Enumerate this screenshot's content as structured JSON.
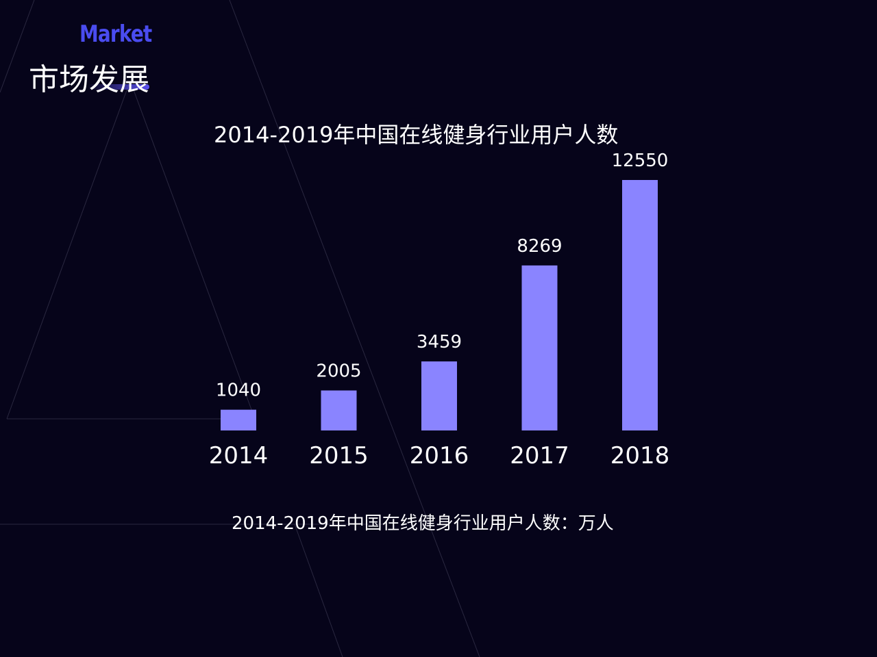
{
  "header": {
    "en_title": "Market",
    "cn_title": "市场发展",
    "accent_color": "#4a4cf0"
  },
  "chart_title": "2014-2019年中国在线健身行业用户人数",
  "footnote": "2014-2019年中国在线健身行业用户人数：万人",
  "chart_data": {
    "type": "bar",
    "title": "2014-2019年中国在线健身行业用户人数",
    "categories": [
      "2014",
      "2015",
      "2016",
      "2017",
      "2018"
    ],
    "values": [
      1040,
      2005,
      3459,
      8269,
      12550
    ],
    "bar_color": "#8a84ff",
    "value_label_color": "#ffffff",
    "xlabel": "",
    "ylabel": "",
    "grid": false,
    "legend": "none"
  }
}
